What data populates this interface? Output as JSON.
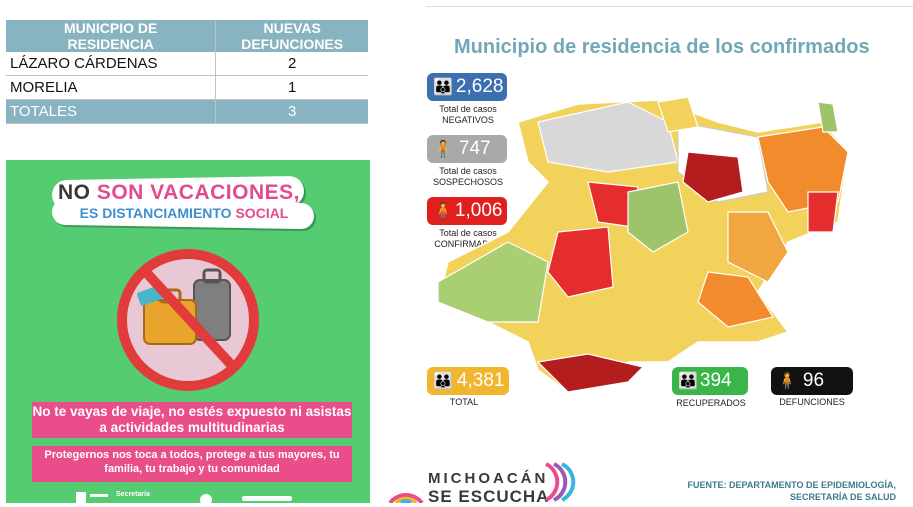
{
  "table": {
    "header": {
      "col1": "MUNICPIO DE RESIDENCIA",
      "col2": "NUEVAS DEFUNCIONES"
    },
    "rows": [
      {
        "municipio": "LÁZARO CÁRDENAS",
        "value": "2"
      },
      {
        "municipio": "MORELIA",
        "value": "1"
      }
    ],
    "total": {
      "label": "TOTALES",
      "value": "3"
    }
  },
  "poster": {
    "headline_no": "NO",
    "headline_rest": "SON VACACIONES,",
    "subheadline_a": "ES DISTANCIAMIENTO",
    "subheadline_b": "SOCIAL",
    "message1": "No te vayas de viaje, no estés expuesto ni asistas a actividades multitudinarias",
    "message2": "Protegernos nos toca a todos, protege a tus mayores, tu familia, tu trabajo y tu comunidad",
    "logo1": "Secretaría",
    "colors": {
      "background": "#55cc72",
      "pink": "#e94e8a",
      "blue": "#3f8fcf"
    }
  },
  "map": {
    "title": "Municipio de residencia de los confirmados",
    "negativos": {
      "value": "2,628",
      "label": "Total de casos NEGATIVOS",
      "color": "#3b6fb0"
    },
    "sospechosos": {
      "value": "747",
      "label": "Total de casos SOSPECHOSOS",
      "color": "#a9a9a9"
    },
    "confirmados": {
      "value": "1,006",
      "label": "Total de casos CONFIRMADOS",
      "color": "#e0201e"
    },
    "total": {
      "value": "4,381",
      "label": "TOTAL",
      "color": "#f2b52e"
    },
    "recuperados": {
      "value": "394",
      "label": "RECUPERADOS",
      "color": "#39b54a"
    },
    "defunciones": {
      "value": "96",
      "label": "DEFUNCIONES",
      "color": "#111111"
    },
    "source": "FUENTE: DEPARTAMENTO DE EPIDEMIOLOGÍA, SECRETARÍA DE SALUD",
    "brand_line1": "MICHOACÁN",
    "brand_line2": "SE ESCUCHA"
  }
}
